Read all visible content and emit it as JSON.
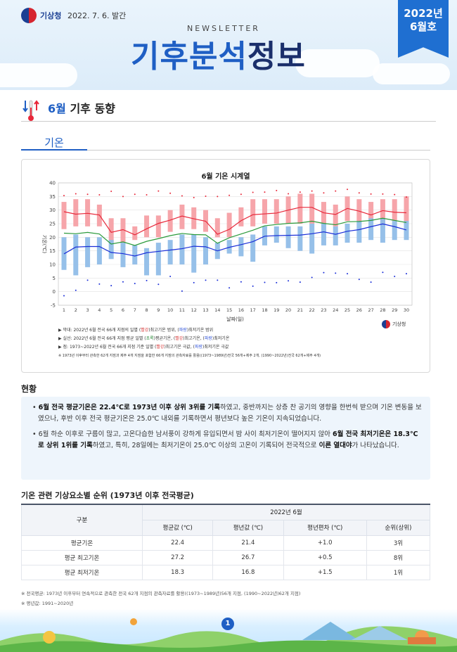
{
  "header": {
    "agency": "기상청",
    "pub_date": "2022. 7. 6. 발간",
    "newsletter": "NEWSLETTER",
    "title_a": "기후분석",
    "title_b": "정보",
    "issue_year": "2022년",
    "issue_month": "6월호"
  },
  "section": {
    "month": "6월",
    "title": "기후 동향",
    "subtab": "기온"
  },
  "chart_data": {
    "type": "line",
    "title": "6월 기온 시계열",
    "xlabel": "날짜(일)",
    "ylabel": "기온(℃)",
    "ylim": [
      -5,
      40
    ],
    "yticks": [
      -5,
      0,
      5,
      10,
      15,
      20,
      25,
      30,
      35,
      40
    ],
    "x": [
      1,
      2,
      3,
      4,
      5,
      6,
      7,
      8,
      9,
      10,
      11,
      12,
      13,
      14,
      15,
      16,
      17,
      18,
      19,
      20,
      21,
      22,
      23,
      24,
      25,
      26,
      27,
      28,
      29,
      30
    ],
    "series": [
      {
        "kind": "range_band",
        "color": "#f5a0a5",
        "lower": [
          23,
          24,
          24,
          24,
          18,
          18,
          19,
          20,
          20,
          22,
          23,
          23,
          22,
          20,
          20,
          24,
          24,
          25,
          25,
          25,
          25,
          25,
          25,
          24,
          26,
          26,
          26,
          25,
          26,
          25
        ],
        "upper": [
          33,
          34,
          34,
          32,
          27,
          27,
          24,
          28,
          28,
          30,
          32,
          31,
          30,
          27,
          29,
          31,
          34,
          34,
          34,
          35,
          36,
          36,
          33,
          32,
          35,
          34,
          33,
          34,
          34,
          35
        ]
      },
      {
        "kind": "range_band",
        "color": "#90bde8",
        "lower": [
          8,
          6,
          9,
          10,
          12,
          9,
          10,
          6,
          6,
          10,
          10,
          7,
          10,
          12,
          14,
          13,
          11,
          17,
          18,
          16,
          15,
          14,
          17,
          17,
          18,
          18,
          19,
          18,
          19,
          19
        ],
        "upper": [
          20,
          21,
          20,
          20,
          19,
          18,
          17,
          16,
          18,
          19,
          21,
          21,
          20,
          18,
          19,
          20,
          21,
          24,
          24,
          24,
          24,
          25,
          25,
          24,
          25,
          26,
          27,
          27,
          26,
          26
        ]
      },
      {
        "name": "평균 최고기온",
        "color": "#e8283a",
        "values": [
          29.4,
          28.5,
          28.8,
          28.2,
          21.8,
          22.8,
          20.9,
          23.1,
          25.1,
          26.3,
          27.8,
          26.8,
          25.9,
          21.1,
          22.9,
          26.1,
          28.3,
          28.6,
          28.9,
          30.0,
          31.0,
          31.0,
          29.0,
          28.4,
          30.6,
          29.6,
          28.2,
          29.8,
          29.2,
          29.0
        ]
      },
      {
        "name": "평균기온",
        "color": "#2a9a3a",
        "values": [
          21.5,
          21.3,
          21.8,
          21.2,
          17.5,
          18.3,
          17.0,
          18.5,
          19.5,
          20.6,
          21.4,
          21.0,
          20.9,
          17.8,
          19.8,
          21.2,
          22.6,
          24.2,
          24.7,
          25.1,
          25.3,
          25.9,
          25.1,
          24.6,
          25.7,
          25.8,
          26.2,
          27.0,
          26.2,
          25.4
        ]
      },
      {
        "name": "평균 최저기온",
        "color": "#1a2ed8",
        "values": [
          13.9,
          16.4,
          16.6,
          16.6,
          14.4,
          14.0,
          13.1,
          14.3,
          14.8,
          15.3,
          15.8,
          16.7,
          16.5,
          15.0,
          16.3,
          17.3,
          18.4,
          20.4,
          20.6,
          20.7,
          20.8,
          21.3,
          22.0,
          21.1,
          22.2,
          22.8,
          23.9,
          24.9,
          23.9,
          22.7
        ]
      },
      {
        "name": "최고기온 극값",
        "color": "#e8283a",
        "values": [
          35.3,
          36.0,
          35.8,
          35.6,
          36.9,
          35.0,
          35.8,
          35.6,
          37.0,
          36.2,
          35.2,
          34.6,
          35.1,
          35.0,
          35.4,
          35.8,
          36.5,
          36.6,
          37.2,
          36.0,
          36.6,
          37.0,
          36.3,
          37.0,
          37.6,
          36.3,
          35.9,
          35.9,
          35.7,
          34.8
        ]
      },
      {
        "name": "최저기온 극값",
        "color": "#1a2ed8",
        "values": [
          -1.5,
          0.5,
          4.2,
          2.8,
          2.2,
          3.6,
          3.0,
          4.1,
          2.7,
          5.6,
          0.2,
          3.3,
          4.2,
          4.2,
          1.4,
          3.6,
          2.0,
          3.4,
          3.3,
          4.0,
          3.5,
          5.2,
          7.0,
          6.8,
          6.6,
          4.5,
          3.5,
          7.1,
          5.6,
          6.6
        ]
      }
    ],
    "grid": true
  },
  "legend": {
    "line1_a": "▶ 막대: 2022년 6월 전국 66개 지점의 일별 (",
    "line1_red": "빨강",
    "line1_b": ")최고기온 범위, (",
    "line1_blue": "파랑",
    "line1_c": ")최저기온 범위",
    "line2_a": "▶ 실선: 2022년 6월 전국 66개 지점 평균 일별 (",
    "line2_green": "초록",
    "line2_b": ")평균기온, (",
    "line2_red": "빨강",
    "line2_c": ")최고기온, (",
    "line2_blue": "파랑",
    "line2_d": ")최저기온",
    "line3_a": "▶ 점: 1973~2022년 6월 전국 66개 지점 기준 일별 (",
    "line3_red": "빨강",
    "line3_b": ")최고기온 극값, (",
    "line3_blue": "파랑",
    "line3_c": ")최저기온 극값",
    "line4": "※ 1973년 이후부터 관측한 62개 지점과 제주 4개 지점을 포함한 66개 지점의 관측자료를 활용((1973~1989년)전국 56개+제주 2개, (1990~2022년)전국 62개+제주 4개)"
  },
  "kma": "기상청",
  "status": {
    "title": "현황",
    "p1_bold": "6월 전국 평균기온은 22.4℃로 1973년 이후 상위 3위를 기록",
    "p1_rest": "하였고, 중반까지는 상층 찬 공기의 영향을 한번씩 받으며 기온 변동을 보였으나, 후반 이후 전국 평균기온은 25.0℃ 내외를 기록하면서 평년보다 높은 기온이 지속되었습니다.",
    "p2_a": "6월 하순 이후로 구름이 많고, 고온다습한 남서풍이 강하게 유입되면서 밤 사이 최저기온이 떨어지지 않아 ",
    "p2_bold": "6월 전국 최저기온은 18.3℃로 상위 1위를 기록",
    "p2_b": "하였고, 특히, 28일에는 최저기온이 25.0℃ 이상의 고온이 기록되어 전국적으로 ",
    "p2_bold2": "이른 열대야",
    "p2_c": "가 나타났습니다."
  },
  "table": {
    "title": "기온 관련 기상요소별 순위 (1973년 이후 전국평균)",
    "col_group": "구분",
    "period": "2022년 6월",
    "headers": [
      "평균값 (℃)",
      "평년값 (℃)",
      "평년편차 (℃)",
      "순위(상위)"
    ],
    "rows": [
      [
        "평균기온",
        "22.4",
        "21.4",
        "+1.0",
        "3위"
      ],
      [
        "평균 최고기온",
        "27.2",
        "26.7",
        "+0.5",
        "8위"
      ],
      [
        "평균 최저기온",
        "18.3",
        "16.8",
        "+1.5",
        "1위"
      ]
    ],
    "note1": "※ 전국평균: 1973년 이후부터 연속적으로 관측한 전국 62개 지점의 관측자료를 활용((1973~1989년)56개 지점, (1990~2022년)62개 지점)",
    "note2": "※ 평년값: 1991~2020년"
  },
  "page_number": "1"
}
